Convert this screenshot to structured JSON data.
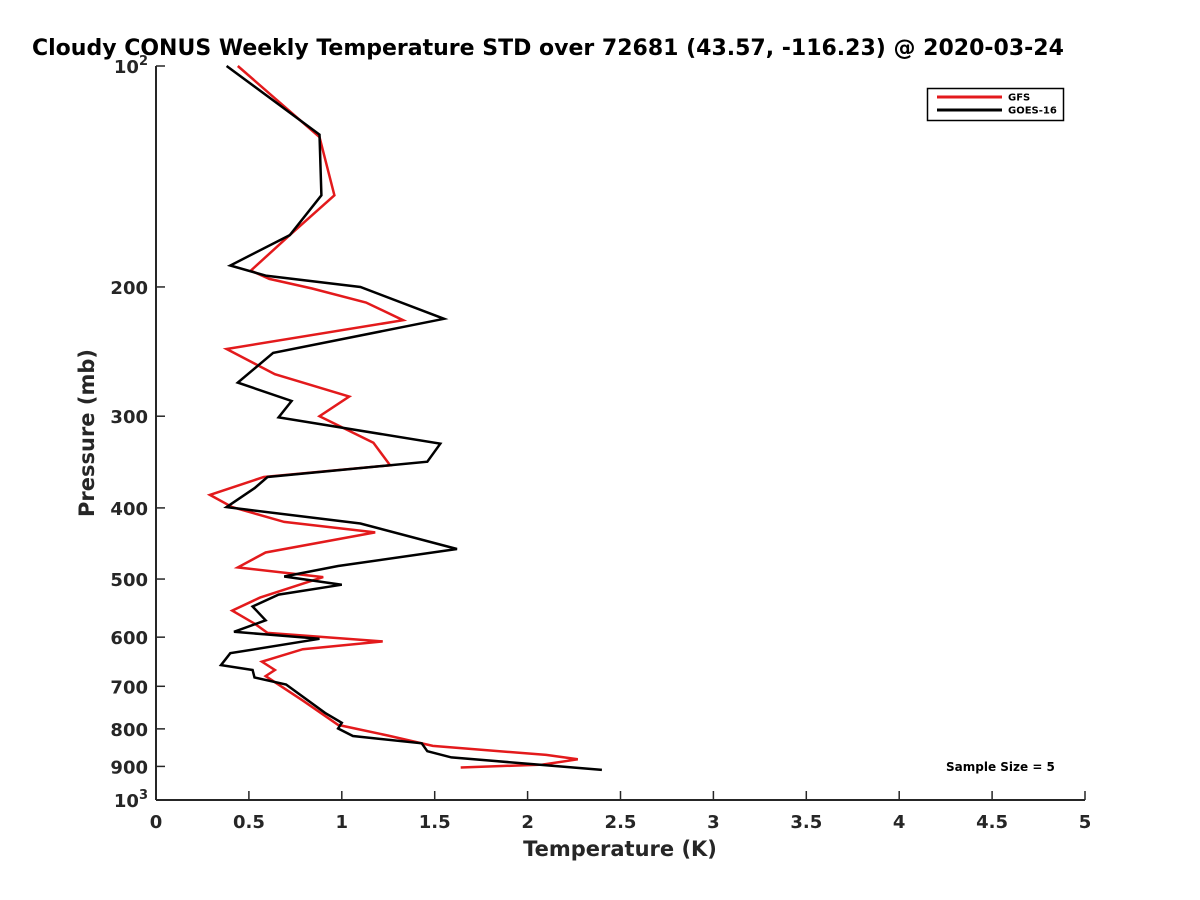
{
  "chart_data": {
    "type": "line",
    "title": "Cloudy CONUS Weekly Temperature STD over 72681 (43.57, -116.23) @ 2020-03-24",
    "xlabel": "Temperature (K)",
    "ylabel": "Pressure (mb)",
    "xlim": [
      0,
      5
    ],
    "ylim": [
      100,
      1000
    ],
    "yscale": "log",
    "yreversed": true,
    "xticks": [
      0,
      0.5,
      1,
      1.5,
      2,
      2.5,
      3,
      3.5,
      4,
      4.5,
      5
    ],
    "xtick_labels": [
      "0",
      "0.5",
      "1",
      "1.5",
      "2",
      "2.5",
      "3",
      "3.5",
      "4",
      "4.5",
      "5"
    ],
    "yticks": [
      {
        "value": 100,
        "base": "10",
        "exp": "2",
        "label": ""
      },
      {
        "value": 200,
        "label": "200"
      },
      {
        "value": 300,
        "label": "300"
      },
      {
        "value": 400,
        "label": "400"
      },
      {
        "value": 500,
        "label": "500"
      },
      {
        "value": 600,
        "label": "600"
      },
      {
        "value": 700,
        "label": "700"
      },
      {
        "value": 800,
        "label": "800"
      },
      {
        "value": 900,
        "label": "900"
      },
      {
        "value": 1000,
        "base": "10",
        "exp": "3",
        "label": ""
      }
    ],
    "grid": false,
    "legend_position": "top-right",
    "annotation": "Sample Size = 5",
    "series": [
      {
        "name": "GFS",
        "color": "#e31a1c",
        "x": [
          0.44,
          0.88,
          0.96,
          0.72,
          0.51,
          0.61,
          0.84,
          1.13,
          1.33,
          0.38,
          0.64,
          1.04,
          0.88,
          1.17,
          1.26,
          0.58,
          0.29,
          0.41,
          0.69,
          1.18,
          0.59,
          0.44,
          0.9,
          0.56,
          0.41,
          0.53,
          0.6,
          1.22,
          0.79,
          0.57,
          0.64,
          0.59,
          0.79,
          0.98,
          1.25,
          1.49,
          2.1,
          2.27,
          2.08,
          1.64
        ],
        "y": [
          100,
          125,
          150,
          170,
          190,
          195,
          201,
          210,
          222,
          243,
          263,
          282,
          300,
          326,
          350,
          363,
          384,
          399,
          418,
          432,
          460,
          482,
          497,
          530,
          552,
          575,
          592,
          608,
          623,
          648,
          665,
          678,
          732,
          790,
          817,
          844,
          868,
          880,
          895,
          903
        ]
      },
      {
        "name": "GOES-16",
        "color": "#000000",
        "x": [
          0.38,
          0.88,
          0.89,
          0.72,
          0.4,
          0.59,
          1.1,
          1.55,
          0.63,
          0.44,
          0.73,
          0.66,
          1.53,
          1.46,
          0.6,
          0.53,
          0.38,
          1.1,
          1.62,
          0.98,
          0.69,
          1.0,
          0.66,
          0.52,
          0.59,
          0.42,
          0.88,
          0.4,
          0.35,
          0.52,
          0.53,
          0.7,
          0.91,
          1.0,
          0.98,
          1.06,
          1.43,
          1.46,
          1.59,
          2.4
        ],
        "y": [
          100,
          124,
          150,
          170,
          187,
          193,
          200,
          221,
          246,
          270,
          286,
          301,
          327,
          346,
          363,
          376,
          399,
          420,
          455,
          480,
          496,
          509,
          525,
          545,
          569,
          590,
          603,
          631,
          655,
          665,
          681,
          696,
          761,
          785,
          799,
          818,
          837,
          858,
          875,
          910
        ]
      }
    ]
  }
}
